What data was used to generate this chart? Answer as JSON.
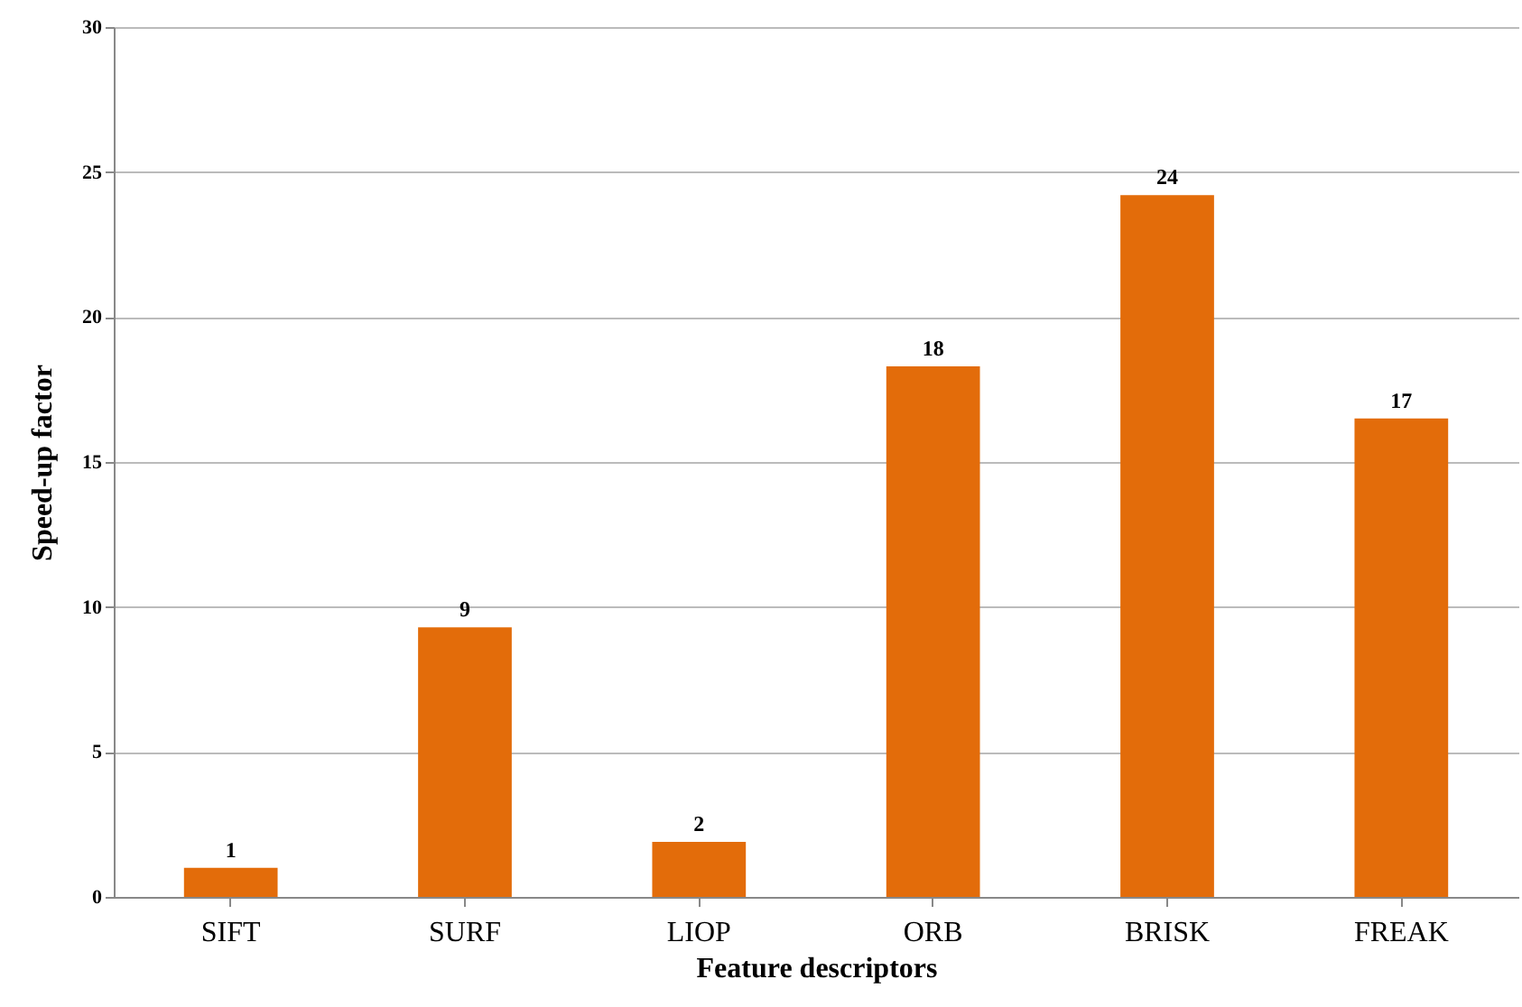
{
  "chart_data": {
    "type": "bar",
    "xlabel": "Feature descriptors",
    "ylabel": "Speed-up factor",
    "categories": [
      "SIFT",
      "SURF",
      "LIOP",
      "ORB",
      "BRISK",
      "FREAK"
    ],
    "values": [
      1.0,
      9.3,
      1.9,
      18.3,
      24.2,
      16.5
    ],
    "value_labels": [
      "1",
      "9",
      "2",
      "18",
      "24",
      "17"
    ],
    "color": "#e36c0a",
    "ylim": [
      0,
      30
    ],
    "yticks": [
      0,
      5,
      10,
      15,
      20,
      25,
      30
    ],
    "grid": "y"
  }
}
